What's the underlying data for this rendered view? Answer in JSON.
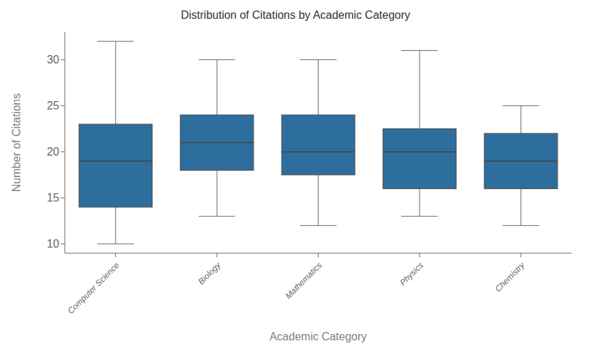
{
  "chart_data": {
    "type": "box",
    "title": "Distribution of Citations by Academic Category",
    "x_label": "Academic Category",
    "y_label": "Number of Citations",
    "categories": [
      "Computer Science",
      "Biology",
      "Mathematics",
      "Physics",
      "Chemistry"
    ],
    "whislo": [
      10,
      13,
      12,
      13,
      12
    ],
    "q1": [
      14,
      18,
      17.5,
      16,
      16
    ],
    "median": [
      19,
      21,
      20,
      20,
      19
    ],
    "q3": [
      23,
      24,
      24,
      22.5,
      22
    ],
    "whishi": [
      32,
      30,
      30,
      31,
      25
    ],
    "color": "#2d6e9e",
    "ylim": [
      9,
      33
    ],
    "yticks": [
      10,
      15,
      20,
      25,
      30
    ],
    "grid": false
  }
}
